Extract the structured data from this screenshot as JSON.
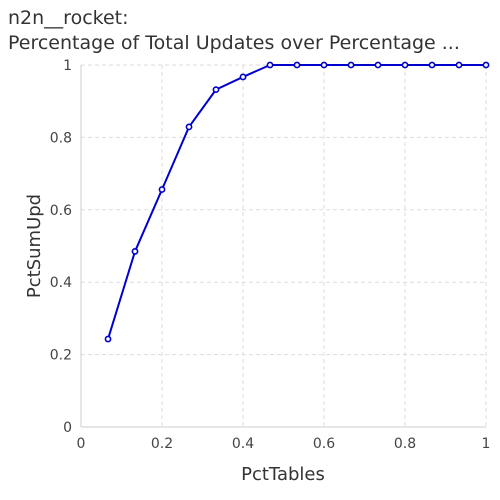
{
  "chart_data": {
    "type": "line",
    "title_line1": "n2n__rocket:",
    "title_line2": "Percentage of Total Updates over Percentage ...",
    "xlabel": "PctTables",
    "ylabel": "PctSumUpd",
    "xlim": [
      0,
      1
    ],
    "ylim": [
      0,
      1
    ],
    "xticks": [
      "0",
      "0.2",
      "0.4",
      "0.6",
      "0.8",
      "1"
    ],
    "yticks": [
      "0",
      "0.2",
      "0.4",
      "0.6",
      "0.8",
      "1"
    ],
    "grid": true,
    "line_color": "#0000cc",
    "series": [
      {
        "x": [
          0.0667,
          0.1333,
          0.2,
          0.2667,
          0.3333,
          0.4,
          0.4667,
          0.5333,
          0.6,
          0.6667,
          0.7333,
          0.8,
          0.8667,
          0.9333,
          1.0
        ],
        "y": [
          0.243,
          0.485,
          0.656,
          0.829,
          0.932,
          0.967,
          1.0,
          1.0,
          1.0,
          1.0,
          1.0,
          1.0,
          1.0,
          1.0,
          1.0
        ]
      }
    ]
  }
}
